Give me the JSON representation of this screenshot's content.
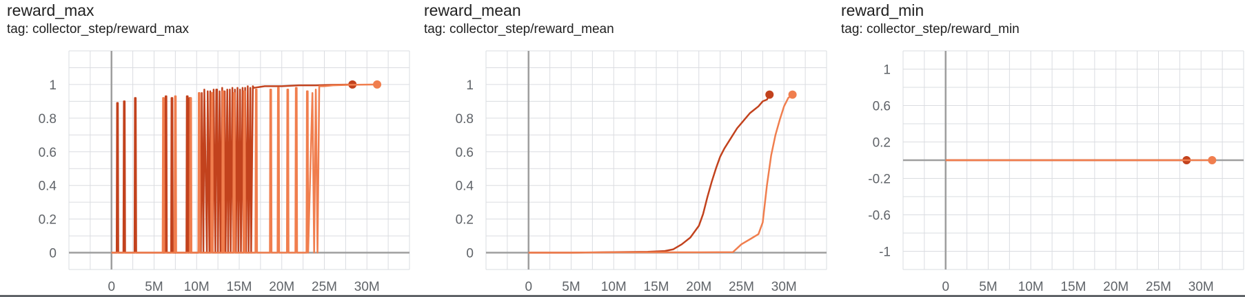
{
  "colors": {
    "run_a": "#c2421d",
    "run_b": "#f07e4e",
    "grid": "#dadce0",
    "axis": "#9e9e9e"
  },
  "panels": [
    {
      "title": "reward_max",
      "tag": "tag: collector_step/reward_max"
    },
    {
      "title": "reward_mean",
      "tag": "tag: collector_step/reward_mean"
    },
    {
      "title": "reward_min",
      "tag": "tag: collector_step/reward_min"
    }
  ],
  "chart_data": [
    {
      "type": "line",
      "title": "reward_max",
      "subtitle": "tag: collector_step/reward_max",
      "xlim": [
        -5,
        35
      ],
      "ylim": [
        -0.1,
        1.2
      ],
      "x_ticks": [
        0,
        5,
        10,
        15,
        20,
        25,
        30
      ],
      "x_tick_labels": [
        "0",
        "5M",
        "10M",
        "15M",
        "20M",
        "25M",
        "30M"
      ],
      "y_ticks": [
        0,
        0.2,
        0.4,
        0.6,
        0.8,
        1
      ],
      "y_tick_labels": [
        "0",
        "0.2",
        "0.4",
        "0.6",
        "0.8",
        "1"
      ],
      "grid": true,
      "series": [
        {
          "color": "#c2421d",
          "x": [
            0.0,
            0.6,
            0.65,
            0.75,
            0.8,
            1.4,
            1.45,
            1.55,
            1.6,
            2.7,
            2.75,
            2.85,
            2.9,
            6.3,
            6.35,
            6.45,
            6.5,
            7.0,
            7.05,
            7.15,
            7.2,
            8.8,
            8.85,
            8.95,
            9.0,
            9.1,
            9.15,
            9.25,
            9.3,
            10.2,
            10.3,
            10.5,
            10.6,
            10.8,
            10.9,
            11.2,
            11.3,
            11.5,
            11.6,
            11.9,
            12.0,
            12.2,
            12.3,
            12.4,
            12.5,
            12.7,
            12.8,
            13.0,
            13.1,
            13.3,
            13.4,
            13.6,
            13.7,
            13.9,
            14.0,
            14.2,
            14.3,
            14.5,
            14.6,
            14.8,
            14.9,
            15.1,
            15.2,
            15.4,
            15.5,
            15.7,
            15.8,
            16.0,
            16.1,
            16.3,
            16.4,
            16.6,
            16.7,
            18.0,
            20.0,
            22.0,
            24.0,
            26.0,
            28.3
          ],
          "y": [
            0,
            0,
            0.89,
            0.89,
            0,
            0,
            0.9,
            0.9,
            0,
            0,
            0.92,
            0.92,
            0,
            0,
            0.93,
            0.93,
            0,
            0,
            0.92,
            0.92,
            0,
            0,
            0.93,
            0.93,
            0,
            0,
            0.92,
            0.92,
            0,
            0,
            0.93,
            0,
            0.95,
            0,
            0.97,
            0,
            0.96,
            0,
            0.96,
            0,
            0.97,
            0,
            0.97,
            0.97,
            0,
            0.96,
            0,
            0.98,
            0,
            0.96,
            0,
            0.97,
            0,
            0.97,
            0,
            0.98,
            0,
            0.97,
            0,
            0.98,
            0,
            0.97,
            0,
            0.98,
            0,
            0.98,
            0,
            0.99,
            0,
            0.98,
            0,
            0.99,
            0.98,
            0.99,
            0.99,
            0.995,
            0.995,
            0.998,
            1.0
          ]
        },
        {
          "color": "#f07e4e",
          "x": [
            0.0,
            6.0,
            6.05,
            6.15,
            6.2,
            7.4,
            7.45,
            7.55,
            7.6,
            9.2,
            9.25,
            9.35,
            9.4,
            10.2,
            10.25,
            10.35,
            10.4,
            11.7,
            11.75,
            11.85,
            11.9,
            13.0,
            13.05,
            13.15,
            13.2,
            14.3,
            14.35,
            14.45,
            14.5,
            15.5,
            15.55,
            15.65,
            15.7,
            16.9,
            16.95,
            17.05,
            17.1,
            18.6,
            18.65,
            18.75,
            18.8,
            19.5,
            19.55,
            19.65,
            19.7,
            20.6,
            20.65,
            20.75,
            20.8,
            21.6,
            21.65,
            21.75,
            21.8,
            22.9,
            22.95,
            23.05,
            23.1,
            23.6,
            23.8,
            24.0,
            24.2,
            24.4,
            25.0,
            26.0,
            28.0,
            31.2
          ],
          "y": [
            0,
            0,
            0.92,
            0.92,
            0,
            0,
            0.93,
            0.93,
            0,
            0,
            0.92,
            0.92,
            0,
            0,
            0.95,
            0.95,
            0,
            0,
            0.95,
            0.95,
            0,
            0,
            0.96,
            0.96,
            0,
            0,
            0.95,
            0.95,
            0,
            0,
            0.96,
            0.96,
            0,
            0,
            0.97,
            0.97,
            0,
            0,
            0.97,
            0.97,
            0,
            0,
            0.98,
            0.98,
            0,
            0,
            0.97,
            0.97,
            0,
            0,
            0.98,
            0.98,
            0,
            0,
            0.96,
            0.96,
            0,
            0.95,
            0,
            0.97,
            0,
            0.99,
            0.99,
            0.995,
            0.998,
            1.0
          ]
        }
      ]
    },
    {
      "type": "line",
      "title": "reward_mean",
      "subtitle": "tag: collector_step/reward_mean",
      "xlim": [
        -5,
        35
      ],
      "ylim": [
        -0.1,
        1.2
      ],
      "x_ticks": [
        0,
        5,
        10,
        15,
        20,
        25,
        30
      ],
      "x_tick_labels": [
        "0",
        "5M",
        "10M",
        "15M",
        "20M",
        "25M",
        "30M"
      ],
      "y_ticks": [
        0,
        0.2,
        0.4,
        0.6,
        0.8,
        1
      ],
      "y_tick_labels": [
        "0",
        "0.2",
        "0.4",
        "0.6",
        "0.8",
        "1"
      ],
      "grid": true,
      "series": [
        {
          "color": "#c2421d",
          "x": [
            0,
            5,
            10,
            14,
            16,
            17,
            18,
            19,
            20,
            20.5,
            21,
            21.5,
            22,
            22.5,
            23,
            23.5,
            24,
            24.5,
            25,
            25.5,
            26,
            26.5,
            27,
            27.5,
            28,
            28.3
          ],
          "y": [
            0,
            0,
            0.003,
            0.005,
            0.01,
            0.02,
            0.05,
            0.09,
            0.16,
            0.23,
            0.33,
            0.42,
            0.5,
            0.57,
            0.62,
            0.66,
            0.7,
            0.74,
            0.77,
            0.8,
            0.83,
            0.85,
            0.87,
            0.9,
            0.91,
            0.94
          ]
        },
        {
          "color": "#f07e4e",
          "x": [
            0,
            5,
            10,
            15,
            20,
            24,
            25,
            26,
            27,
            27.5,
            28,
            28.5,
            29,
            29.5,
            30,
            30.5,
            31
          ],
          "y": [
            0,
            0,
            0.002,
            0.002,
            0.002,
            0.003,
            0.05,
            0.08,
            0.11,
            0.18,
            0.4,
            0.58,
            0.7,
            0.79,
            0.87,
            0.92,
            0.94
          ]
        }
      ]
    },
    {
      "type": "line",
      "title": "reward_min",
      "subtitle": "tag: collector_step/reward_min",
      "xlim": [
        -5,
        35
      ],
      "ylim": [
        -1.2,
        1.2
      ],
      "x_ticks": [
        0,
        5,
        10,
        15,
        20,
        25,
        30
      ],
      "x_tick_labels": [
        "0",
        "5M",
        "10M",
        "15M",
        "20M",
        "25M",
        "30M"
      ],
      "y_ticks": [
        -1,
        -0.6,
        -0.2,
        0.2,
        0.6,
        1
      ],
      "y_tick_labels": [
        "-1",
        "-0.6",
        "-0.2",
        "0.2",
        "0.6",
        "1"
      ],
      "grid": true,
      "series": [
        {
          "color": "#c2421d",
          "x": [
            0,
            28.3
          ],
          "y": [
            0,
            0
          ]
        },
        {
          "color": "#f07e4e",
          "x": [
            0,
            31.3
          ],
          "y": [
            0,
            0
          ]
        }
      ]
    }
  ]
}
